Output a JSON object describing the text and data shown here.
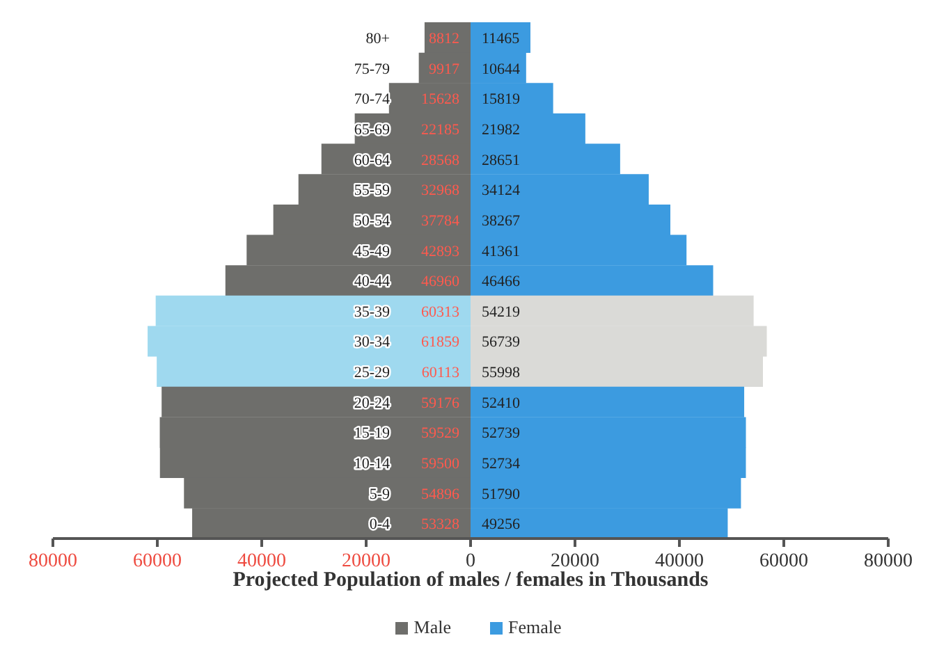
{
  "chart_data": [
    {
      "type": "bar",
      "orientation": "horizontal",
      "xlabel": "Projected Population of males / females in Thousands",
      "categories": [
        "80+",
        "75-79",
        "70-74",
        "65-69",
        "60-64",
        "55-59",
        "50-54",
        "45-49",
        "40-44",
        "35-39",
        "30-34",
        "25-29",
        "20-24",
        "15-19",
        "10-14",
        "5-9",
        "0-4"
      ],
      "series": [
        {
          "name": "Male",
          "color": "#6e6e6b",
          "colors": [
            "#6e6e6b",
            "#6e6e6b",
            "#6e6e6b",
            "#6e6e6b",
            "#6e6e6b",
            "#6e6e6b",
            "#6e6e6b",
            "#6e6e6b",
            "#6e6e6b",
            "#9fd9ef",
            "#9fd9ef",
            "#9fd9ef",
            "#6e6e6b",
            "#6e6e6b",
            "#6e6e6b",
            "#6e6e6b",
            "#6e6e6b"
          ],
          "values": [
            8812,
            9917,
            15628,
            22185,
            28568,
            32968,
            37784,
            42893,
            46960,
            60313,
            61859,
            60113,
            59176,
            59529,
            59500,
            54896,
            53328
          ]
        }
      ],
      "xlim": [
        80000,
        0
      ],
      "xticks": [
        80000,
        60000,
        40000,
        20000
      ],
      "data_labels": true,
      "legend": "bottom"
    },
    {
      "type": "bar",
      "orientation": "horizontal",
      "categories": [
        null,
        null,
        null,
        null,
        null,
        null,
        null,
        null,
        null,
        null,
        null,
        null,
        null,
        null,
        null,
        null,
        null
      ],
      "series": [
        {
          "name": "Female",
          "color": "#3c9be0",
          "colors": [
            "#3c9be0",
            "#3c9be0",
            "#3c9be0",
            "#3c9be0",
            "#3c9be0",
            "#3c9be0",
            "#3c9be0",
            "#3c9be0",
            "#3c9be0",
            "#dadad7",
            "#dadad7",
            "#dadad7",
            "#3c9be0",
            "#3c9be0",
            "#3c9be0",
            "#3c9be0",
            "#3c9be0"
          ],
          "values": [
            11465,
            10644,
            15819,
            21982,
            28651,
            34124,
            38267,
            41361,
            46466,
            54219,
            56739,
            55998,
            52410,
            52739,
            52734,
            51790,
            49256
          ]
        }
      ],
      "xlim": [
        0,
        80000
      ],
      "xticks": [
        0,
        20000,
        40000,
        60000,
        80000
      ],
      "tick_labels": "x",
      "data_labels": true,
      "legend": "bottom"
    }
  ]
}
